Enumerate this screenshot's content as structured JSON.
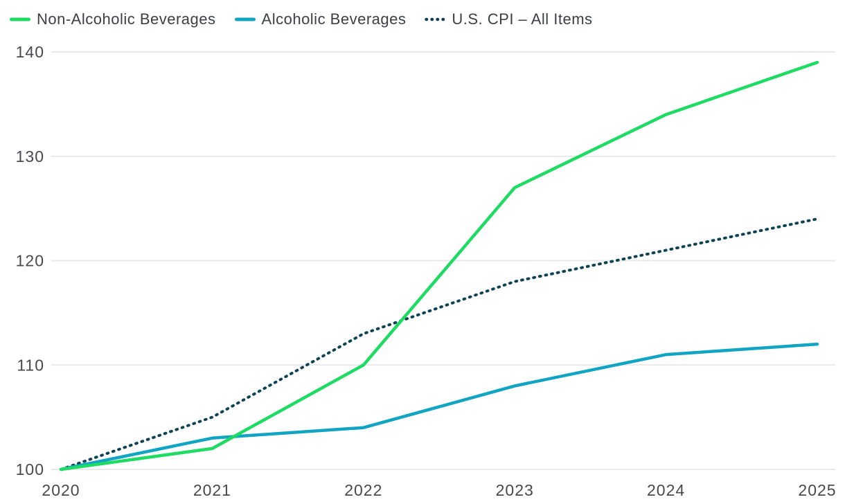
{
  "page": {
    "background_color": "#ffffff",
    "text_color": "#46494d",
    "gridline_color": "#e8e9ea"
  },
  "legend": {
    "position": "top-left",
    "items": [
      {
        "label": "Non-Alcoholic Beverages",
        "swatch": "solid-line",
        "color": "#1ddb63"
      },
      {
        "label": "Alcoholic Beverages",
        "swatch": "solid-line",
        "color": "#11a5c3"
      },
      {
        "label": "U.S. CPI – All Items",
        "swatch": "dotted-line",
        "color": "#0d4354"
      }
    ]
  },
  "chart_data": {
    "type": "line",
    "x": [
      2020,
      2021,
      2022,
      2023,
      2024,
      2025
    ],
    "series": [
      {
        "name": "Non-Alcoholic Beverages",
        "color": "#1ddb63",
        "line_style": "solid",
        "values": [
          100,
          102,
          110,
          127,
          134,
          139
        ]
      },
      {
        "name": "Alcoholic Beverages",
        "color": "#11a5c3",
        "line_style": "solid",
        "values": [
          100,
          103,
          104,
          108,
          111,
          112
        ]
      },
      {
        "name": "U.S. CPI – All Items",
        "color": "#0d4354",
        "line_style": "dotted",
        "values": [
          100,
          105,
          113,
          118,
          121,
          124
        ]
      }
    ],
    "xlabel": "",
    "ylabel": "",
    "ylim": [
      100,
      140
    ],
    "yticks": [
      100,
      110,
      120,
      130,
      140
    ],
    "xticks": [
      "2020",
      "2021",
      "2022",
      "2023",
      "2024",
      "2025"
    ],
    "grid": "horizontal",
    "legend_position": "top-left"
  }
}
